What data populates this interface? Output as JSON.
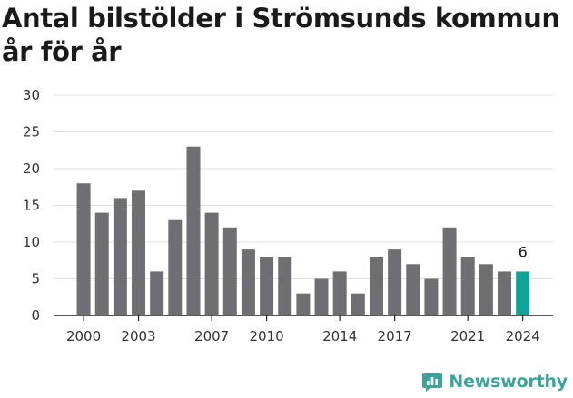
{
  "chart_data": {
    "type": "bar",
    "title": "Antal bilstölder i Strömsunds kommun år för år",
    "categories": [
      "2000",
      "2001",
      "2002",
      "2003",
      "2004",
      "2005",
      "2006",
      "2007",
      "2008",
      "2009",
      "2010",
      "2011",
      "2012",
      "2013",
      "2014",
      "2015",
      "2016",
      "2017",
      "2018",
      "2019",
      "2020",
      "2021",
      "2022",
      "2023",
      "2024"
    ],
    "values": [
      18,
      14,
      16,
      17,
      6,
      13,
      23,
      14,
      12,
      9,
      8,
      8,
      3,
      5,
      6,
      3,
      8,
      9,
      7,
      5,
      12,
      8,
      7,
      6,
      6
    ],
    "x_tick_labels": [
      "2000",
      "2003",
      "2007",
      "2010",
      "2014",
      "2017",
      "2021",
      "2024"
    ],
    "y_ticks": [
      0,
      5,
      10,
      15,
      20,
      25,
      30
    ],
    "ylim": [
      0,
      30
    ],
    "grid": true,
    "highlight": {
      "category": "2024",
      "value_label": "6"
    },
    "colors": {
      "bar": "#6f6e73",
      "highlight": "#0fa398",
      "grid": "#e0e0e0"
    }
  },
  "branding": {
    "logo_text": "Newsworthy",
    "logo_icon": "newsworthy-chart-icon",
    "logo_color": "#3aa598"
  }
}
